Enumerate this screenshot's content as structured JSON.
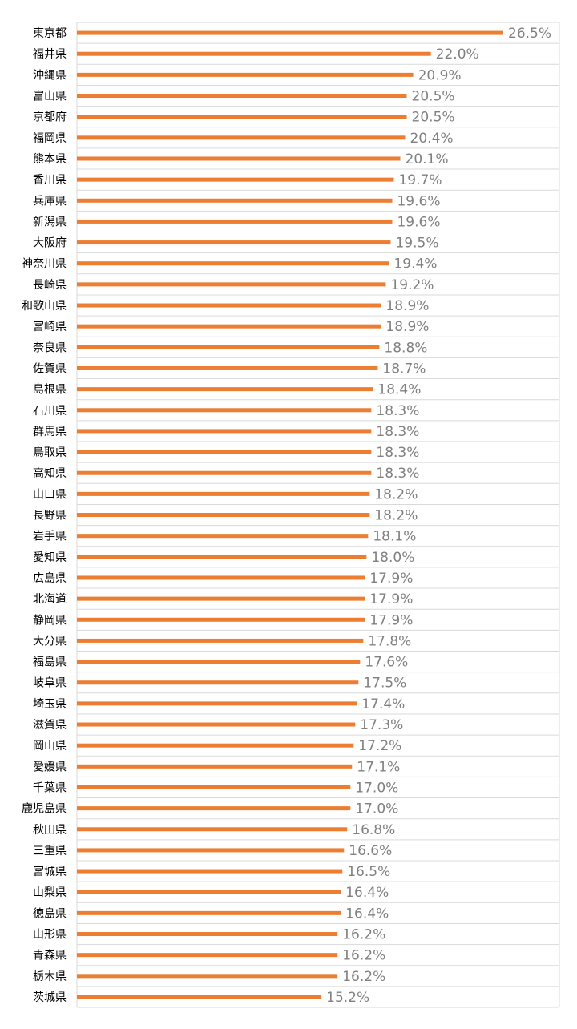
{
  "colors": {
    "bar": "#ed7d31",
    "grid": "#d9d9d9",
    "value_label": "#808080",
    "category_label": "#000000",
    "background": "#ffffff"
  },
  "chart_data": {
    "type": "bar",
    "orientation": "horizontal",
    "grid": true,
    "legend": "none",
    "title": "",
    "xlabel": "",
    "ylabel": "",
    "xlim": [
      0,
      28.0
    ],
    "value_suffix": "%",
    "categories": [
      "東京都",
      "福井県",
      "沖縄県",
      "富山県",
      "京都府",
      "福岡県",
      "熊本県",
      "香川県",
      "兵庫県",
      "新潟県",
      "大阪府",
      "神奈川県",
      "長崎県",
      "和歌山県",
      "宮崎県",
      "奈良県",
      "佐賀県",
      "島根県",
      "石川県",
      "群馬県",
      "鳥取県",
      "高知県",
      "山口県",
      "長野県",
      "岩手県",
      "愛知県",
      "広島県",
      "北海道",
      "静岡県",
      "大分県",
      "福島県",
      "岐阜県",
      "埼玉県",
      "滋賀県",
      "岡山県",
      "愛媛県",
      "千葉県",
      "鹿児島県",
      "秋田県",
      "三重県",
      "宮城県",
      "山梨県",
      "徳島県",
      "山形県",
      "青森県",
      "栃木県",
      "茨城県"
    ],
    "values": [
      26.5,
      22.0,
      20.9,
      20.5,
      20.5,
      20.4,
      20.1,
      19.7,
      19.6,
      19.6,
      19.5,
      19.4,
      19.2,
      18.9,
      18.9,
      18.8,
      18.7,
      18.4,
      18.3,
      18.3,
      18.3,
      18.3,
      18.2,
      18.2,
      18.1,
      18.0,
      17.9,
      17.9,
      17.9,
      17.8,
      17.6,
      17.5,
      17.4,
      17.3,
      17.2,
      17.1,
      17.0,
      17.0,
      16.8,
      16.6,
      16.5,
      16.4,
      16.4,
      16.2,
      16.2,
      16.2,
      15.2
    ],
    "data_labels": [
      "26.5%",
      "22.0%",
      "20.9%",
      "20.5%",
      "20.5%",
      "20.4%",
      "20.1%",
      "19.7%",
      "19.6%",
      "19.6%",
      "19.5%",
      "19.4%",
      "19.2%",
      "18.9%",
      "18.9%",
      "18.8%",
      "18.7%",
      "18.4%",
      "18.3%",
      "18.3%",
      "18.3%",
      "18.3%",
      "18.2%",
      "18.2%",
      "18.1%",
      "18.0%",
      "17.9%",
      "17.9%",
      "17.9%",
      "17.8%",
      "17.6%",
      "17.5%",
      "17.4%",
      "17.3%",
      "17.2%",
      "17.1%",
      "17.0%",
      "17.0%",
      "16.8%",
      "16.6%",
      "16.5%",
      "16.4%",
      "16.4%",
      "16.2%",
      "16.2%",
      "16.2%",
      "15.2%"
    ]
  }
}
